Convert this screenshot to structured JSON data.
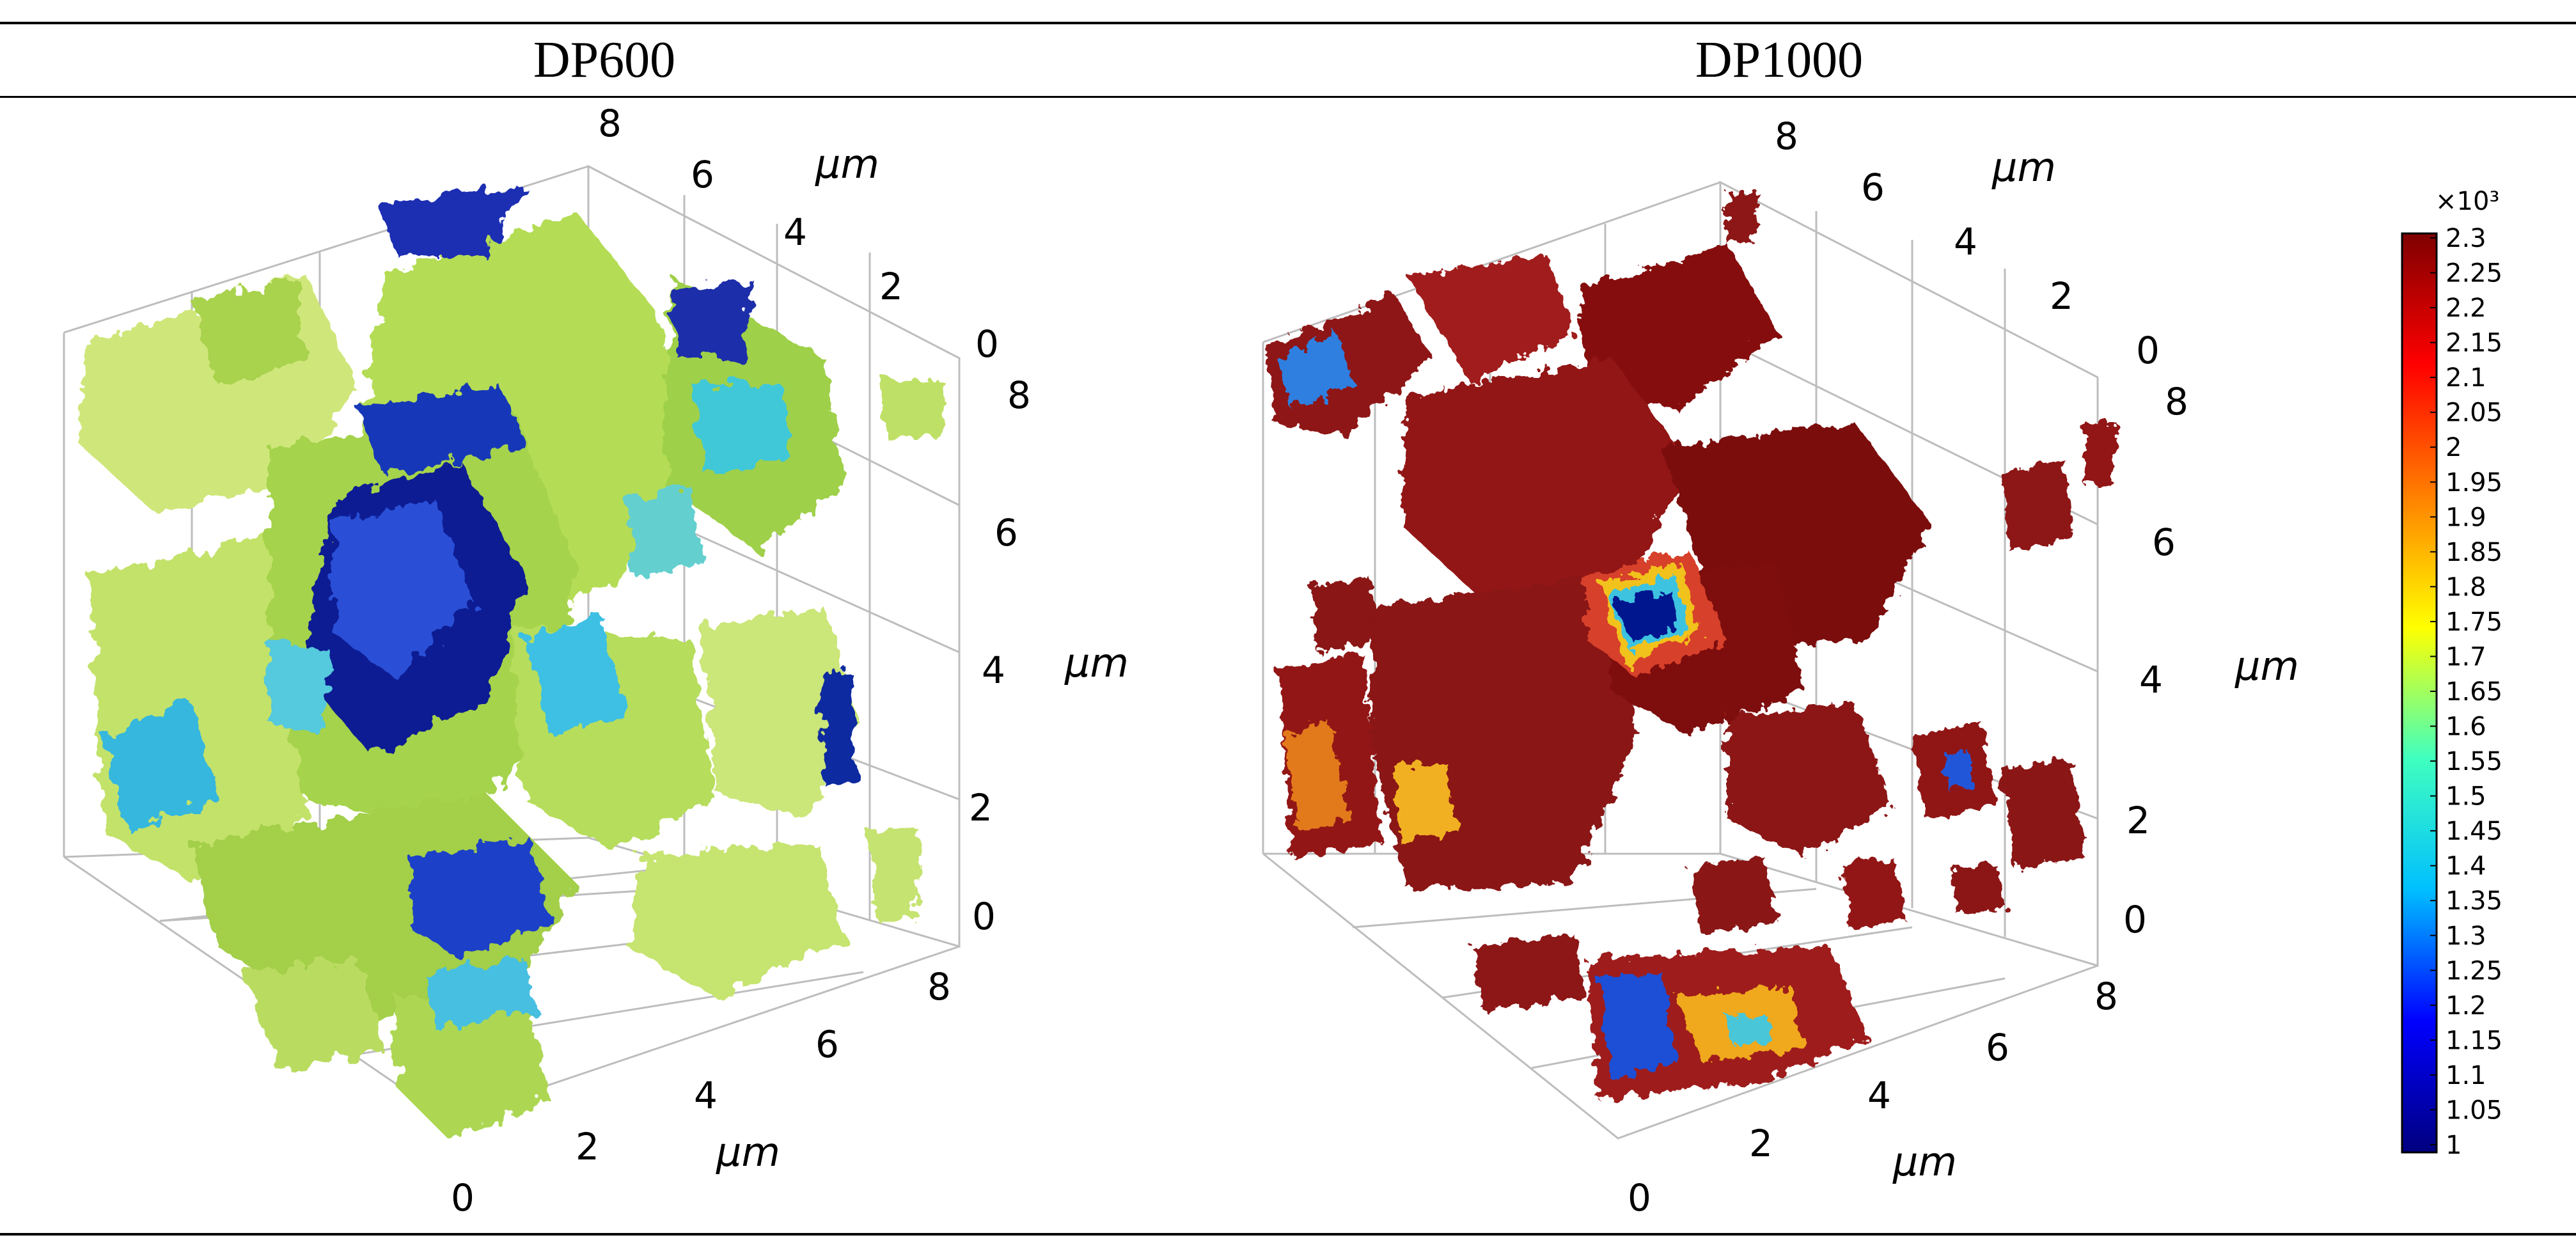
{
  "headers": {
    "left": "DP600",
    "right": "DP1000"
  },
  "units": {
    "um": "μm"
  },
  "axis_ticks": {
    "back": [
      "8",
      "6",
      "4",
      "2",
      "0"
    ],
    "vertical": [
      "8",
      "6",
      "4",
      "2",
      "0"
    ],
    "front": [
      "8",
      "6",
      "4",
      "2",
      "0"
    ]
  },
  "colorbar": {
    "multiplier": "×10³",
    "labels": [
      "2.3",
      "2.25",
      "2.2",
      "2.15",
      "2.1",
      "2.05",
      "2",
      "1.95",
      "1.9",
      "1.85",
      "1.8",
      "1.75",
      "1.7",
      "1.65",
      "1.6",
      "1.55",
      "1.5",
      "1.45",
      "1.4",
      "1.35",
      "1.3",
      "1.25",
      "1.2",
      "1.15",
      "1.1",
      "1.05",
      "1"
    ],
    "colors": [
      "#00007f",
      "#0000ff",
      "#00bfff",
      "#40ffbf",
      "#ffff00",
      "#ff8000",
      "#ff0000",
      "#7f0000"
    ]
  },
  "colors": {
    "dp600_main": "#a8d645",
    "dp600_light": "#d2ec7a",
    "dp600_cyan": "#2fb7e0",
    "dp600_blue": "#0d1f9e",
    "dp1000_main": "#8e1212",
    "dp1000_dark": "#5e0808",
    "dp1000_light": "#c13a2f"
  }
}
